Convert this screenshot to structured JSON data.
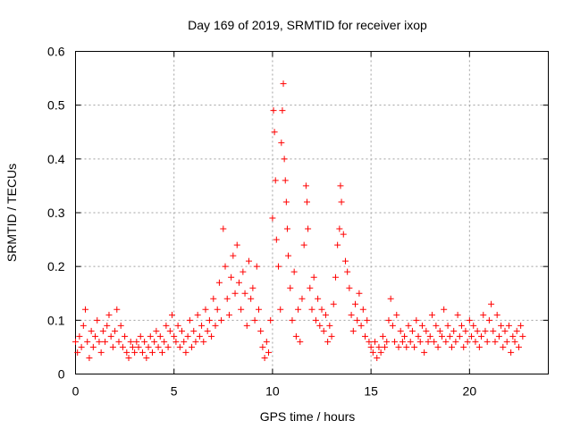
{
  "chart_data": {
    "type": "scatter",
    "title": "Day 169 of 2019, SRMTID for receiver ixop",
    "xlabel": "GPS time / hours",
    "ylabel": "SRMTID / TECUs",
    "xlim": [
      0,
      24
    ],
    "ylim": [
      0,
      0.6
    ],
    "xticks": [
      0,
      5,
      10,
      15,
      20
    ],
    "yticks": [
      0,
      0.1,
      0.2,
      0.3,
      0.4,
      0.5,
      0.6
    ],
    "xtick_labels": [
      "0",
      "5",
      "10",
      "15",
      "20"
    ],
    "ytick_labels": [
      "0",
      "0.1",
      "0.2",
      "0.3",
      "0.4",
      "0.5",
      "0.6"
    ],
    "grid": true,
    "marker": "+",
    "color": "#ff0000",
    "series": [
      {
        "name": "SRMTID",
        "points": [
          [
            0.0,
            0.06
          ],
          [
            0.1,
            0.04
          ],
          [
            0.2,
            0.07
          ],
          [
            0.3,
            0.05
          ],
          [
            0.4,
            0.09
          ],
          [
            0.5,
            0.12
          ],
          [
            0.6,
            0.06
          ],
          [
            0.7,
            0.03
          ],
          [
            0.8,
            0.08
          ],
          [
            0.9,
            0.05
          ],
          [
            1.0,
            0.07
          ],
          [
            1.1,
            0.1
          ],
          [
            1.2,
            0.06
          ],
          [
            1.3,
            0.04
          ],
          [
            1.4,
            0.08
          ],
          [
            1.5,
            0.06
          ],
          [
            1.6,
            0.09
          ],
          [
            1.7,
            0.11
          ],
          [
            1.8,
            0.07
          ],
          [
            1.9,
            0.05
          ],
          [
            2.0,
            0.08
          ],
          [
            2.1,
            0.12
          ],
          [
            2.2,
            0.06
          ],
          [
            2.3,
            0.09
          ],
          [
            2.4,
            0.05
          ],
          [
            2.5,
            0.07
          ],
          [
            2.6,
            0.04
          ],
          [
            2.7,
            0.03
          ],
          [
            2.8,
            0.06
          ],
          [
            2.9,
            0.05
          ],
          [
            3.0,
            0.04
          ],
          [
            3.1,
            0.06
          ],
          [
            3.2,
            0.05
          ],
          [
            3.3,
            0.07
          ],
          [
            3.4,
            0.04
          ],
          [
            3.5,
            0.06
          ],
          [
            3.6,
            0.03
          ],
          [
            3.7,
            0.05
          ],
          [
            3.8,
            0.07
          ],
          [
            3.9,
            0.04
          ],
          [
            4.0,
            0.06
          ],
          [
            4.1,
            0.08
          ],
          [
            4.2,
            0.05
          ],
          [
            4.3,
            0.07
          ],
          [
            4.4,
            0.04
          ],
          [
            4.5,
            0.06
          ],
          [
            4.6,
            0.09
          ],
          [
            4.7,
            0.05
          ],
          [
            4.8,
            0.08
          ],
          [
            4.9,
            0.11
          ],
          [
            5.0,
            0.07
          ],
          [
            5.1,
            0.06
          ],
          [
            5.2,
            0.09
          ],
          [
            5.3,
            0.05
          ],
          [
            5.4,
            0.08
          ],
          [
            5.5,
            0.06
          ],
          [
            5.6,
            0.04
          ],
          [
            5.7,
            0.07
          ],
          [
            5.8,
            0.1
          ],
          [
            5.9,
            0.05
          ],
          [
            6.0,
            0.08
          ],
          [
            6.1,
            0.06
          ],
          [
            6.2,
            0.11
          ],
          [
            6.3,
            0.07
          ],
          [
            6.4,
            0.09
          ],
          [
            6.5,
            0.06
          ],
          [
            6.6,
            0.12
          ],
          [
            6.7,
            0.08
          ],
          [
            6.8,
            0.1
          ],
          [
            6.9,
            0.07
          ],
          [
            7.0,
            0.14
          ],
          [
            7.1,
            0.09
          ],
          [
            7.2,
            0.12
          ],
          [
            7.3,
            0.17
          ],
          [
            7.4,
            0.1
          ],
          [
            7.5,
            0.27
          ],
          [
            7.6,
            0.2
          ],
          [
            7.7,
            0.14
          ],
          [
            7.8,
            0.11
          ],
          [
            7.9,
            0.18
          ],
          [
            8.0,
            0.22
          ],
          [
            8.1,
            0.15
          ],
          [
            8.2,
            0.24
          ],
          [
            8.3,
            0.17
          ],
          [
            8.4,
            0.12
          ],
          [
            8.5,
            0.19
          ],
          [
            8.6,
            0.15
          ],
          [
            8.7,
            0.09
          ],
          [
            8.8,
            0.21
          ],
          [
            8.9,
            0.14
          ],
          [
            9.0,
            0.16
          ],
          [
            9.1,
            0.1
          ],
          [
            9.2,
            0.2
          ],
          [
            9.3,
            0.12
          ],
          [
            9.4,
            0.08
          ],
          [
            9.5,
            0.05
          ],
          [
            9.6,
            0.03
          ],
          [
            9.7,
            0.06
          ],
          [
            9.8,
            0.04
          ],
          [
            9.9,
            0.1
          ],
          [
            10.0,
            0.29
          ],
          [
            10.05,
            0.49
          ],
          [
            10.1,
            0.45
          ],
          [
            10.15,
            0.36
          ],
          [
            10.2,
            0.25
          ],
          [
            10.3,
            0.2
          ],
          [
            10.4,
            0.12
          ],
          [
            10.45,
            0.43
          ],
          [
            10.5,
            0.49
          ],
          [
            10.55,
            0.54
          ],
          [
            10.6,
            0.4
          ],
          [
            10.65,
            0.36
          ],
          [
            10.7,
            0.32
          ],
          [
            10.75,
            0.27
          ],
          [
            10.8,
            0.22
          ],
          [
            10.9,
            0.16
          ],
          [
            11.0,
            0.1
          ],
          [
            11.1,
            0.19
          ],
          [
            11.2,
            0.07
          ],
          [
            11.3,
            0.12
          ],
          [
            11.4,
            0.06
          ],
          [
            11.5,
            0.14
          ],
          [
            11.6,
            0.24
          ],
          [
            11.7,
            0.35
          ],
          [
            11.75,
            0.32
          ],
          [
            11.8,
            0.27
          ],
          [
            11.9,
            0.16
          ],
          [
            12.0,
            0.12
          ],
          [
            12.1,
            0.18
          ],
          [
            12.2,
            0.1
          ],
          [
            12.3,
            0.14
          ],
          [
            12.4,
            0.09
          ],
          [
            12.5,
            0.12
          ],
          [
            12.6,
            0.08
          ],
          [
            12.7,
            0.11
          ],
          [
            12.8,
            0.06
          ],
          [
            12.9,
            0.09
          ],
          [
            13.0,
            0.07
          ],
          [
            13.1,
            0.13
          ],
          [
            13.2,
            0.18
          ],
          [
            13.3,
            0.24
          ],
          [
            13.4,
            0.27
          ],
          [
            13.45,
            0.35
          ],
          [
            13.5,
            0.32
          ],
          [
            13.6,
            0.26
          ],
          [
            13.7,
            0.21
          ],
          [
            13.8,
            0.19
          ],
          [
            13.9,
            0.16
          ],
          [
            14.0,
            0.11
          ],
          [
            14.1,
            0.08
          ],
          [
            14.2,
            0.13
          ],
          [
            14.3,
            0.1
          ],
          [
            14.4,
            0.15
          ],
          [
            14.5,
            0.09
          ],
          [
            14.6,
            0.12
          ],
          [
            14.7,
            0.07
          ],
          [
            14.8,
            0.1
          ],
          [
            14.9,
            0.06
          ],
          [
            15.0,
            0.05
          ],
          [
            15.1,
            0.04
          ],
          [
            15.2,
            0.06
          ],
          [
            15.3,
            0.03
          ],
          [
            15.4,
            0.05
          ],
          [
            15.5,
            0.04
          ],
          [
            15.6,
            0.07
          ],
          [
            15.7,
            0.05
          ],
          [
            15.8,
            0.06
          ],
          [
            15.9,
            0.1
          ],
          [
            16.0,
            0.14
          ],
          [
            16.1,
            0.09
          ],
          [
            16.2,
            0.06
          ],
          [
            16.3,
            0.11
          ],
          [
            16.4,
            0.05
          ],
          [
            16.5,
            0.08
          ],
          [
            16.6,
            0.06
          ],
          [
            16.7,
            0.07
          ],
          [
            16.8,
            0.05
          ],
          [
            16.9,
            0.09
          ],
          [
            17.0,
            0.06
          ],
          [
            17.1,
            0.08
          ],
          [
            17.2,
            0.05
          ],
          [
            17.3,
            0.1
          ],
          [
            17.4,
            0.07
          ],
          [
            17.5,
            0.06
          ],
          [
            17.6,
            0.09
          ],
          [
            17.7,
            0.04
          ],
          [
            17.8,
            0.08
          ],
          [
            17.9,
            0.06
          ],
          [
            18.0,
            0.07
          ],
          [
            18.1,
            0.11
          ],
          [
            18.2,
            0.06
          ],
          [
            18.3,
            0.09
          ],
          [
            18.4,
            0.05
          ],
          [
            18.5,
            0.08
          ],
          [
            18.6,
            0.07
          ],
          [
            18.7,
            0.12
          ],
          [
            18.8,
            0.06
          ],
          [
            18.9,
            0.09
          ],
          [
            19.0,
            0.07
          ],
          [
            19.1,
            0.05
          ],
          [
            19.2,
            0.08
          ],
          [
            19.3,
            0.06
          ],
          [
            19.4,
            0.11
          ],
          [
            19.5,
            0.07
          ],
          [
            19.6,
            0.09
          ],
          [
            19.7,
            0.05
          ],
          [
            19.8,
            0.08
          ],
          [
            19.9,
            0.06
          ],
          [
            20.0,
            0.1
          ],
          [
            20.1,
            0.07
          ],
          [
            20.2,
            0.09
          ],
          [
            20.3,
            0.06
          ],
          [
            20.4,
            0.08
          ],
          [
            20.5,
            0.05
          ],
          [
            20.6,
            0.07
          ],
          [
            20.7,
            0.11
          ],
          [
            20.8,
            0.08
          ],
          [
            20.9,
            0.06
          ],
          [
            21.0,
            0.1
          ],
          [
            21.1,
            0.13
          ],
          [
            21.2,
            0.08
          ],
          [
            21.3,
            0.06
          ],
          [
            21.4,
            0.11
          ],
          [
            21.5,
            0.07
          ],
          [
            21.6,
            0.09
          ],
          [
            21.7,
            0.05
          ],
          [
            21.8,
            0.08
          ],
          [
            21.9,
            0.06
          ],
          [
            22.0,
            0.09
          ],
          [
            22.1,
            0.04
          ],
          [
            22.2,
            0.07
          ],
          [
            22.3,
            0.06
          ],
          [
            22.4,
            0.08
          ],
          [
            22.5,
            0.05
          ],
          [
            22.6,
            0.09
          ],
          [
            22.7,
            0.07
          ]
        ]
      }
    ]
  }
}
